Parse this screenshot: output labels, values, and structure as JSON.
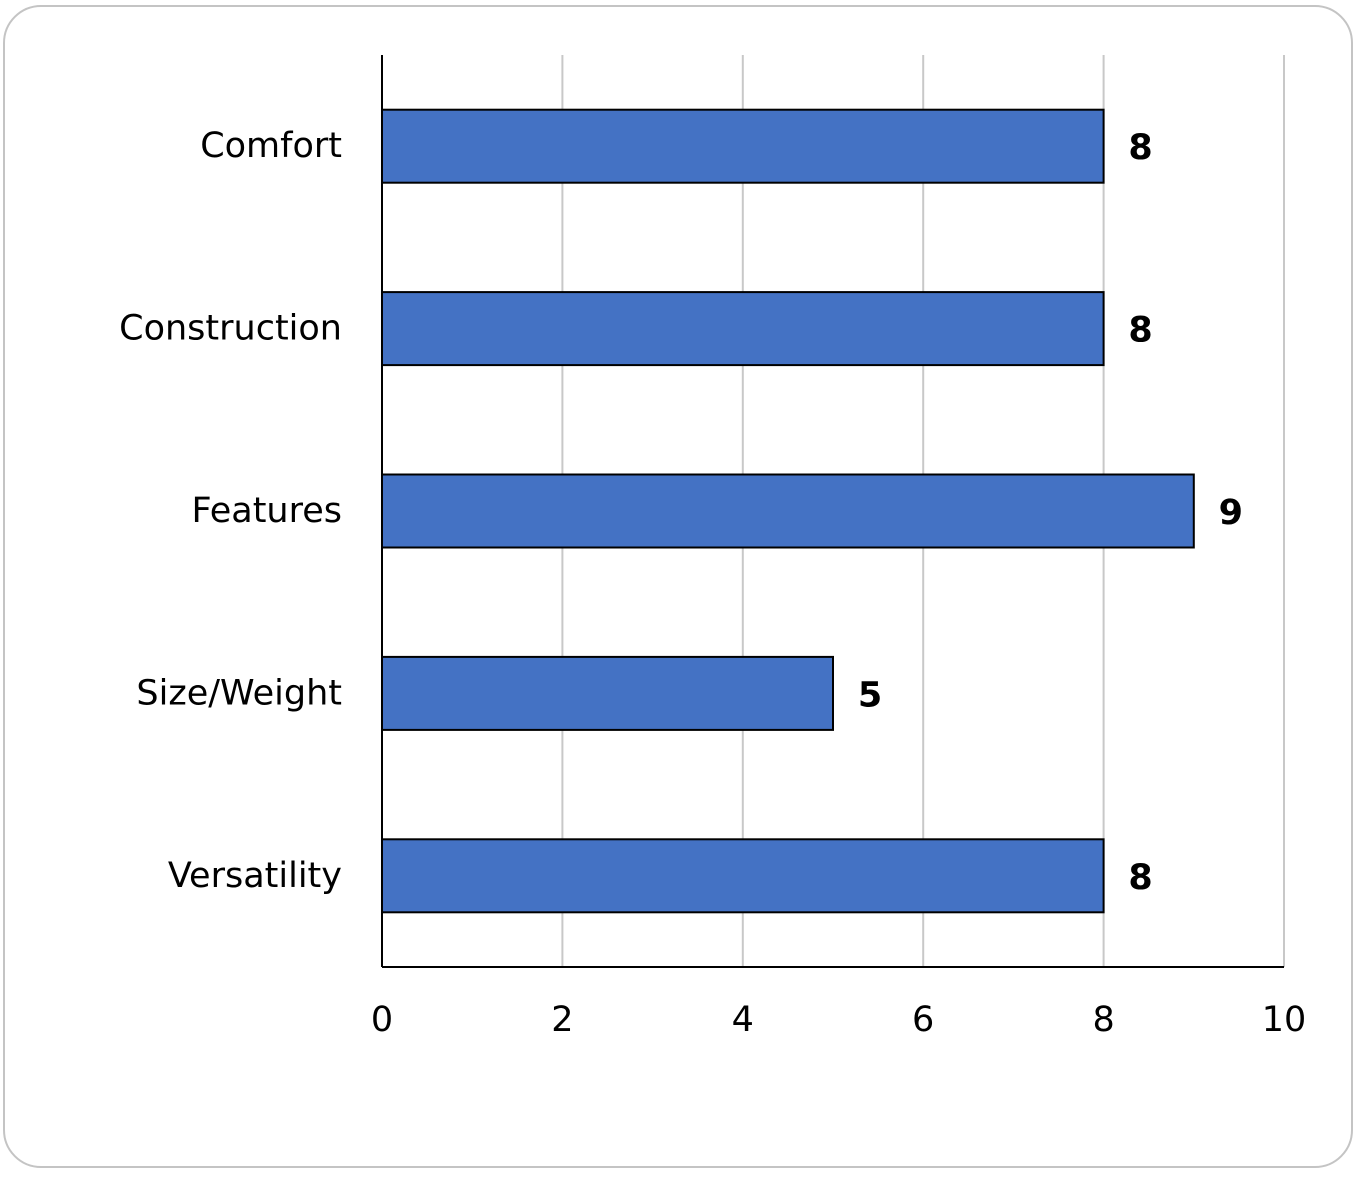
{
  "chart_data": {
    "type": "bar",
    "orientation": "horizontal",
    "categories": [
      "Comfort",
      "Construction",
      "Features",
      "Size/Weight",
      "Versatility"
    ],
    "values": [
      8,
      8,
      9,
      5,
      8
    ],
    "title": "",
    "xlabel": "",
    "ylabel": "",
    "xlim": [
      0,
      10
    ],
    "x_ticks": [
      "0",
      "2",
      "4",
      "6",
      "8",
      "10"
    ],
    "x_tick_values": [
      0,
      2,
      4,
      6,
      8,
      10
    ],
    "data_labels": [
      "8",
      "8",
      "9",
      "5",
      "8"
    ],
    "grid": "vertical",
    "legend": "none",
    "colors": {
      "bar": "#4472C4",
      "bar_edge": "#000000",
      "grid": "#c8c8c8",
      "axis": "#000000",
      "frame": "#c4c4c4"
    }
  }
}
